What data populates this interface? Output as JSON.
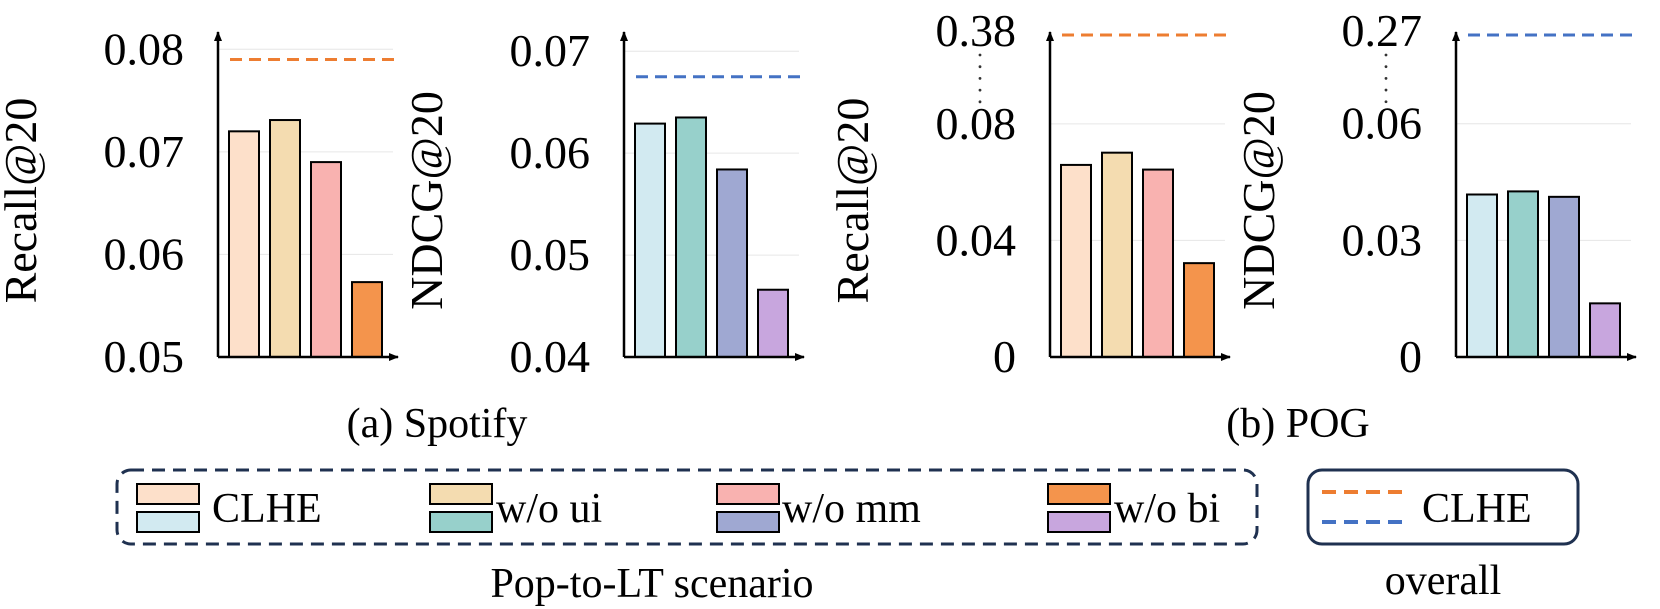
{
  "colors": {
    "clhe_pop": "#FDE0CA",
    "ui_pop": "#F4DCB0",
    "mm_pop": "#F9B2B0",
    "bi_pop": "#F4944C",
    "clhe_lt": "#D2EAF1",
    "ui_lt": "#97D0CB",
    "mm_lt": "#9FA8D2",
    "bi_lt": "#C8A6DE",
    "overall_orange": "#ED7D31",
    "overall_blue": "#4472C4",
    "legend_border": "#1F3150"
  },
  "captions": {
    "spotify": "(a) Spotify",
    "pog": "(b) POG"
  },
  "legend": {
    "entries": [
      "CLHE",
      "w/o ui",
      "w/o mm",
      "w/o bi"
    ],
    "scenario_label": "Pop-to-LT scenario",
    "overall_entry": "CLHE",
    "overall_label": "overall"
  },
  "chart_data": [
    {
      "type": "bar",
      "title": "Spotify Recall@20",
      "ylabel": "Recall@20",
      "categories": [
        "CLHE",
        "w/o ui",
        "w/o mm",
        "w/o bi"
      ],
      "values": [
        0.072,
        0.0731,
        0.069,
        0.0573
      ],
      "colors": [
        "clhe_pop",
        "ui_pop",
        "mm_pop",
        "bi_pop"
      ],
      "ylim": [
        0.05,
        0.081
      ],
      "yticks": [
        0.05,
        0.06,
        0.07,
        0.08
      ],
      "ytick_labels": [
        "0.05",
        "0.06",
        "0.07",
        "0.08"
      ],
      "overall": 0.079,
      "overall_color": "overall_orange",
      "broken_axis": false
    },
    {
      "type": "bar",
      "title": "Spotify NDCG@20",
      "ylabel": "NDCG@20",
      "categories": [
        "CLHE",
        "w/o ui",
        "w/o mm",
        "w/o bi"
      ],
      "values": [
        0.0629,
        0.0635,
        0.0584,
        0.0466
      ],
      "colors": [
        "clhe_lt",
        "ui_lt",
        "mm_lt",
        "bi_lt"
      ],
      "ylim": [
        0.04,
        0.0712
      ],
      "yticks": [
        0.04,
        0.05,
        0.06,
        0.07
      ],
      "ytick_labels": [
        "0.04",
        "0.05",
        "0.06",
        "0.07"
      ],
      "overall": 0.0675,
      "overall_color": "overall_blue",
      "broken_axis": false
    },
    {
      "type": "bar",
      "title": "POG Recall@20",
      "ylabel": "Recall@20",
      "categories": [
        "CLHE",
        "w/o ui",
        "w/o mm",
        "w/o bi"
      ],
      "values": [
        0.0659,
        0.0701,
        0.0643,
        0.0322
      ],
      "colors": [
        "clhe_pop",
        "ui_pop",
        "mm_pop",
        "bi_pop"
      ],
      "ylim": [
        0,
        0.1091
      ],
      "yticks": [
        0,
        0.04,
        0.08
      ],
      "ytick_labels": [
        "0",
        "0.04",
        "0.08"
      ],
      "broken_axis": true,
      "break_label": "0.38",
      "overall": 0.38,
      "overall_color": "overall_orange"
    },
    {
      "type": "bar",
      "title": "POG NDCG@20",
      "ylabel": "NDCG@20",
      "categories": [
        "CLHE",
        "w/o ui",
        "w/o mm",
        "w/o bi"
      ],
      "values": [
        0.0418,
        0.0426,
        0.0412,
        0.0138
      ],
      "colors": [
        "clhe_lt",
        "ui_lt",
        "mm_lt",
        "bi_lt"
      ],
      "ylim": [
        0,
        0.0818
      ],
      "yticks": [
        0,
        0.03,
        0.06
      ],
      "ytick_labels": [
        "0",
        "0.03",
        "0.06"
      ],
      "broken_axis": true,
      "break_label": "0.27",
      "overall": 0.27,
      "overall_color": "overall_blue"
    }
  ]
}
